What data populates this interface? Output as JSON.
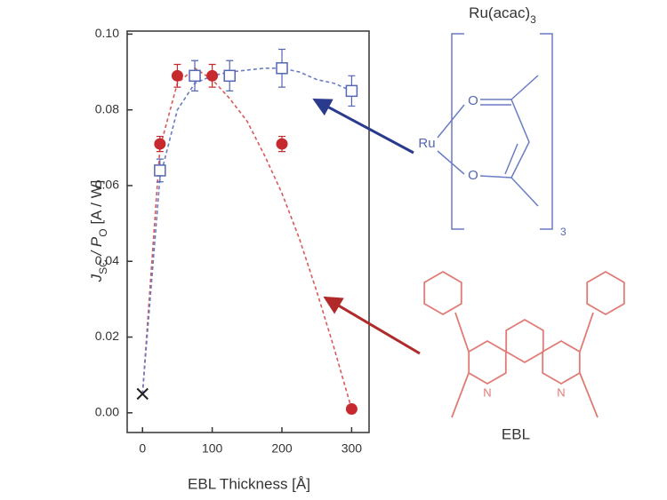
{
  "chart_data": {
    "type": "scatter",
    "xlabel": "EBL Thickness [Å]",
    "ylabel": [
      "J",
      "SC",
      " / P",
      "O",
      "   [A / W]"
    ],
    "xlim": [
      -22,
      325
    ],
    "ylim": [
      -0.0052,
      0.1008
    ],
    "xticks": [
      0,
      100,
      200,
      300
    ],
    "yticks": [
      {
        "value": 0,
        "label": "0.00"
      },
      {
        "value": 0.02,
        "label": "0.02"
      },
      {
        "value": 0.04,
        "label": "0.04"
      },
      {
        "value": 0.06,
        "label": "0.06"
      },
      {
        "value": 0.08,
        "label": "0.08"
      },
      {
        "value": 0.1,
        "label": "0.10"
      }
    ],
    "series": [
      {
        "color": "#c62a2e",
        "marker": "circle",
        "x": [
          25,
          50,
          100,
          200,
          300
        ],
        "values": [
          0.071,
          0.089,
          0.089,
          0.071,
          0.001
        ],
        "errors": [
          0.002,
          0.003,
          0.003,
          0.002,
          0
        ]
      },
      {
        "color": "#5466b4",
        "marker": "square",
        "x": [
          25,
          75,
          125,
          200,
          300
        ],
        "values": [
          0.064,
          0.089,
          0.089,
          0.091,
          0.085
        ],
        "errors": [
          0.003,
          0.004,
          0.004,
          0.005,
          0.004
        ]
      },
      {
        "color": "#222222",
        "marker": "x",
        "x": [
          0
        ],
        "values": [
          0.005
        ]
      },
      {
        "color": "#d85a5a",
        "marker": "dashed",
        "x": [
          0,
          25,
          50,
          75,
          100,
          125,
          150,
          175,
          200,
          225,
          250,
          275,
          300
        ],
        "values": [
          0.005,
          0.07,
          0.087,
          0.091,
          0.088,
          0.083,
          0.077,
          0.068,
          0.058,
          0.046,
          0.032,
          0.017,
          0.001
        ]
      },
      {
        "color": "#6a7cc4",
        "marker": "dashed",
        "x": [
          0,
          25,
          50,
          75,
          100,
          125,
          150,
          175,
          200,
          225,
          250,
          275,
          300
        ],
        "values": [
          0.005,
          0.062,
          0.08,
          0.087,
          0.089,
          0.09,
          0.0905,
          0.091,
          0.091,
          0.09,
          0.088,
          0.087,
          0.085
        ]
      }
    ],
    "annotations": {
      "ru_title": [
        "Ru(acac)",
        "3"
      ],
      "ru": "Ru",
      "o_top": "O",
      "o_bottom": "O",
      "ru_count": "3",
      "n_left": "N",
      "n_right": "N",
      "ebl": "EBL"
    }
  }
}
